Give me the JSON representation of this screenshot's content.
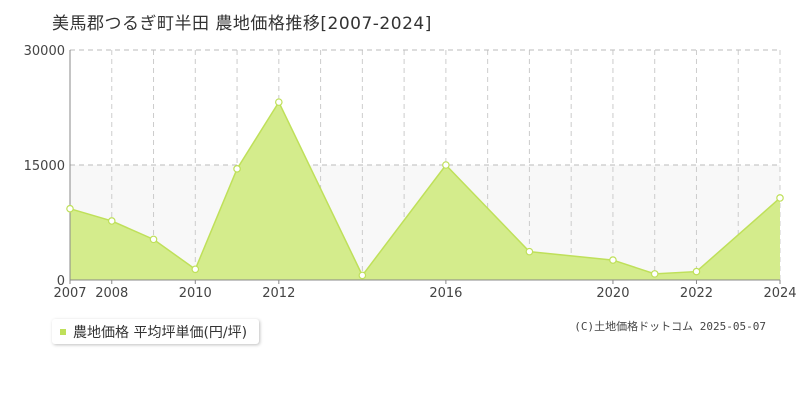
{
  "title": "美馬郡つるぎ町半田  農地価格推移[2007-2024]",
  "legend": {
    "label": "農地価格 平均坪単価(円/坪)",
    "color": "#bfe05a"
  },
  "credit": "(C)土地価格ドットコム 2025-05-07",
  "colors": {
    "fill": "#d4ec8c",
    "line": "#bfe05a",
    "band": "#f8f8f8"
  },
  "chart_data": {
    "type": "area",
    "title": "美馬郡つるぎ町半田  農地価格推移[2007-2024]",
    "xlabel": "",
    "ylabel": "",
    "x": [
      2007,
      2008,
      2009,
      2010,
      2011,
      2012,
      2013,
      2014,
      2015,
      2016,
      2017,
      2018,
      2019,
      2020,
      2021,
      2022,
      2023,
      2024
    ],
    "x_tick_labels": [
      "2007",
      "2008",
      "2010",
      "2012",
      "2016",
      "2020",
      "2022",
      "2024"
    ],
    "y_tick_labels": [
      "30000",
      "15000",
      "0"
    ],
    "xlim": [
      2007,
      2024
    ],
    "ylim": [
      0,
      30000
    ],
    "grid": true,
    "series": [
      {
        "name": "農地価格 平均坪単価(円/坪)",
        "points": [
          {
            "x": 2007,
            "y": 9300
          },
          {
            "x": 2008,
            "y": 7700
          },
          {
            "x": 2009,
            "y": 5300
          },
          {
            "x": 2010,
            "y": 1400
          },
          {
            "x": 2011,
            "y": 14500
          },
          {
            "x": 2012,
            "y": 23200
          },
          {
            "x": 2014,
            "y": 600
          },
          {
            "x": 2016,
            "y": 15000
          },
          {
            "x": 2018,
            "y": 3700
          },
          {
            "x": 2020,
            "y": 2600
          },
          {
            "x": 2021,
            "y": 800
          },
          {
            "x": 2022,
            "y": 1100
          },
          {
            "x": 2024,
            "y": 10700
          }
        ]
      }
    ]
  }
}
